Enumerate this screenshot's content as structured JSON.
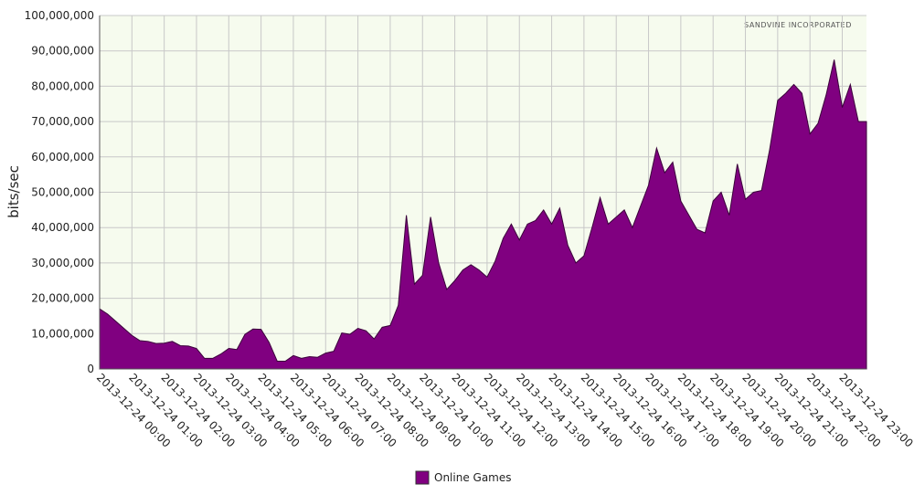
{
  "chart_data": {
    "type": "area",
    "ylabel": "bits/sec",
    "watermark": "SANDVINE INCORPORATED",
    "categories": [
      "2013-12-24 00:00",
      null,
      null,
      null,
      "2013-12-24 01:00",
      null,
      null,
      null,
      "2013-12-24 02:00",
      null,
      null,
      null,
      "2013-12-24 03:00",
      null,
      null,
      null,
      "2013-12-24 04:00",
      null,
      null,
      null,
      "2013-12-24 05:00",
      null,
      null,
      null,
      "2013-12-24 06:00",
      null,
      null,
      null,
      "2013-12-24 07:00",
      null,
      null,
      null,
      "2013-12-24 08:00",
      null,
      null,
      null,
      "2013-12-24 09:00",
      null,
      null,
      null,
      "2013-12-24 10:00",
      null,
      null,
      null,
      "2013-12-24 11:00",
      null,
      null,
      null,
      "2013-12-24 12:00",
      null,
      null,
      null,
      "2013-12-24 13:00",
      null,
      null,
      null,
      "2013-12-24 14:00",
      null,
      null,
      null,
      "2013-12-24 15:00",
      null,
      null,
      null,
      "2013-12-24 16:00",
      null,
      null,
      null,
      "2013-12-24 17:00",
      null,
      null,
      null,
      "2013-12-24 18:00",
      null,
      null,
      null,
      "2013-12-24 19:00",
      null,
      null,
      null,
      "2013-12-24 20:00",
      null,
      null,
      null,
      "2013-12-24 21:00",
      null,
      null,
      null,
      "2013-12-24 22:00",
      null,
      null,
      null,
      "2013-12-24 23:00",
      null,
      null,
      null
    ],
    "series": [
      {
        "name": "Online Games",
        "color": "#800080",
        "values": [
          17000000,
          15500000,
          13500000,
          11500000,
          9500000,
          8000000,
          7800000,
          7200000,
          7300000,
          7800000,
          6600000,
          6500000,
          5800000,
          3000000,
          3000000,
          4200000,
          5800000,
          5500000,
          9800000,
          11300000,
          11200000,
          7500000,
          2200000,
          2200000,
          3800000,
          3000000,
          3500000,
          3300000,
          4500000,
          5000000,
          10200000,
          9800000,
          11500000,
          10800000,
          8500000,
          11800000,
          12300000,
          18000000,
          43500000,
          24000000,
          26500000,
          43000000,
          30000000,
          22500000,
          25000000,
          28000000,
          29500000,
          28000000,
          26000000,
          30500000,
          37000000,
          41000000,
          36500000,
          41000000,
          42000000,
          45000000,
          41000000,
          45500000,
          35000000,
          30000000,
          32000000,
          40000000,
          48500000,
          41000000,
          43000000,
          45000000,
          40000000,
          46000000,
          52000000,
          62500000,
          55500000,
          58500000,
          47500000,
          43500000,
          39500000,
          38500000,
          47500000,
          50000000,
          43500000,
          58000000,
          48000000,
          50000000,
          50500000,
          62000000,
          76000000,
          78000000,
          80500000,
          78000000,
          66500000,
          69500000,
          77500000,
          87500000,
          74000000,
          80500000,
          70000000,
          70000000
        ]
      }
    ],
    "ylim": [
      0,
      100000000
    ],
    "yticks": [
      0,
      {
        "value": 10000000,
        "label": "10,000,000"
      },
      {
        "value": 20000000,
        "label": "20,000,000"
      },
      {
        "value": 30000000,
        "label": "30,000,000"
      },
      {
        "value": 40000000,
        "label": "40,000,000"
      },
      {
        "value": 50000000,
        "label": "50,000,000"
      },
      {
        "value": 60000000,
        "label": "60,000,000"
      },
      {
        "value": 70000000,
        "label": "70,000,000"
      },
      {
        "value": 80000000,
        "label": "80,000,000"
      },
      {
        "value": 90000000,
        "label": "90,000,000"
      },
      {
        "value": 100000000,
        "label": "100,000,000"
      }
    ],
    "grid": true,
    "legend": "bottom"
  }
}
